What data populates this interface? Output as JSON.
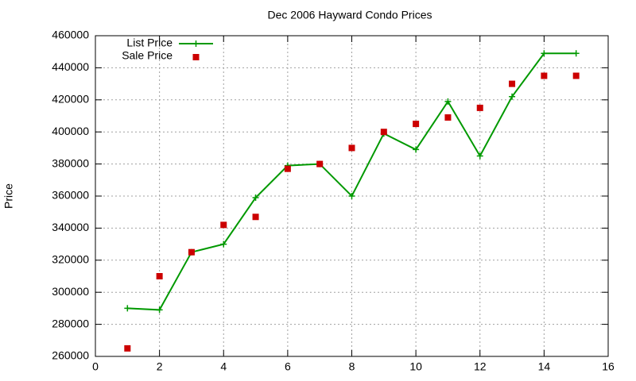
{
  "chart_data": {
    "type": "line",
    "title": "Dec 2006 Hayward Condo Prices",
    "y_label": "Price",
    "x": [
      1,
      2,
      3,
      4,
      5,
      6,
      7,
      8,
      9,
      10,
      11,
      12,
      13,
      14,
      15
    ],
    "series": [
      {
        "name": "List Price",
        "color": "#009900",
        "mode": "lines+markers",
        "values": [
          290000,
          289000,
          325000,
          330000,
          359000,
          379000,
          380000,
          360000,
          399000,
          389000,
          419000,
          385000,
          422000,
          449000,
          449000
        ]
      },
      {
        "name": "Sale Price",
        "color": "#cc0000",
        "mode": "markers",
        "values": [
          265000,
          310000,
          325000,
          342000,
          347000,
          377000,
          380000,
          390000,
          400000,
          405000,
          409000,
          415000,
          430000,
          435000,
          435000
        ]
      }
    ],
    "xlim": [
      0,
      16
    ],
    "xticks": [
      0,
      2,
      4,
      6,
      8,
      10,
      12,
      14,
      16
    ],
    "ylim": [
      260000,
      460000
    ],
    "yticks": [
      260000,
      280000,
      300000,
      320000,
      340000,
      360000,
      380000,
      400000,
      420000,
      440000,
      460000
    ],
    "grid": true,
    "legend": "top-left"
  }
}
